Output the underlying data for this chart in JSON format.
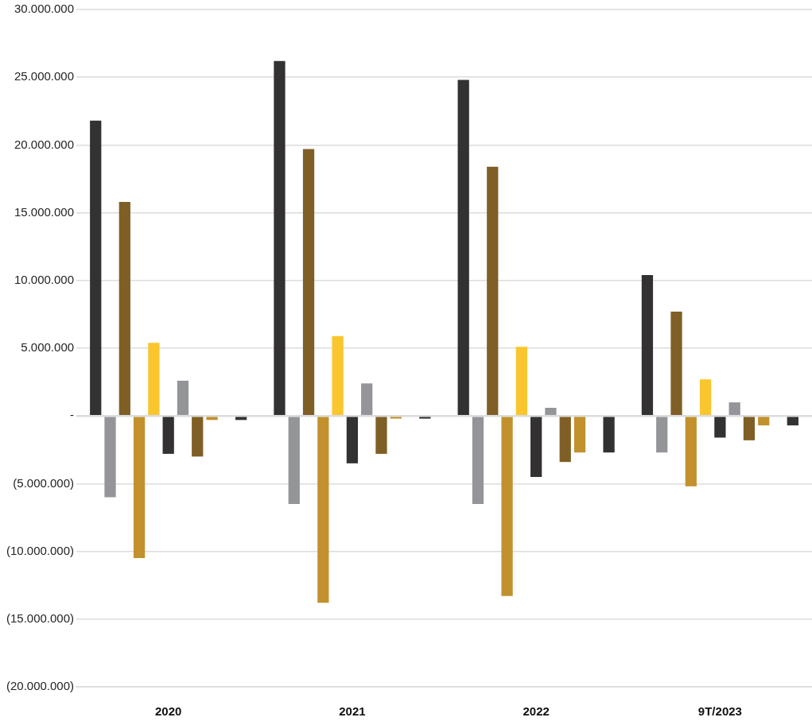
{
  "chart_data": {
    "type": "bar",
    "categories": [
      "2020",
      "2021",
      "2022",
      "9T/2023"
    ],
    "series": [
      {
        "color": "#333132",
        "values": [
          21800000,
          26200000,
          24800000,
          10400000
        ]
      },
      {
        "color": "#939598",
        "values": [
          -6000000,
          -6500000,
          -6500000,
          -2700000
        ]
      },
      {
        "color": "#7f5f26",
        "values": [
          15800000,
          19700000,
          18400000,
          7700000
        ]
      },
      {
        "color": "#c2912e",
        "values": [
          -10500000,
          -13800000,
          -13300000,
          -5200000
        ]
      },
      {
        "color": "#f9c62d",
        "values": [
          5400000,
          5900000,
          5100000,
          2700000
        ]
      },
      {
        "color": "#333132",
        "values": [
          -2800000,
          -3500000,
          -4500000,
          -1600000
        ]
      },
      {
        "color": "#939598",
        "values": [
          2600000,
          2400000,
          600000,
          1000000
        ]
      },
      {
        "color": "#7f5f26",
        "values": [
          -3000000,
          -2800000,
          -3400000,
          -1800000
        ]
      },
      {
        "color": "#c2912e",
        "values": [
          -300000,
          -200000,
          -2700000,
          -700000
        ]
      },
      {
        "color": "#f9c62d",
        "values": [
          null,
          null,
          null,
          null
        ]
      },
      {
        "color": "#333132",
        "values": [
          -300000,
          -200000,
          -2700000,
          -700000
        ]
      }
    ],
    "ylim": [
      -20000000,
      30000000
    ],
    "yticks": [
      {
        "value": -20000000,
        "label": "(20.000.000)"
      },
      {
        "value": -15000000,
        "label": "(15.000.000)"
      },
      {
        "value": -10000000,
        "label": "(10.000.000)"
      },
      {
        "value": -5000000,
        "label": "(5.000.000)"
      },
      {
        "value": 0,
        "label": "-"
      },
      {
        "value": 5000000,
        "label": "5.000.000"
      },
      {
        "value": 10000000,
        "label": "10.000.000"
      },
      {
        "value": 15000000,
        "label": "15.000.000"
      },
      {
        "value": 20000000,
        "label": "20.000.000"
      },
      {
        "value": 25000000,
        "label": "25.000.000"
      },
      {
        "value": 30000000,
        "label": "30.000.000"
      }
    ],
    "grid": "y",
    "legend": false
  }
}
